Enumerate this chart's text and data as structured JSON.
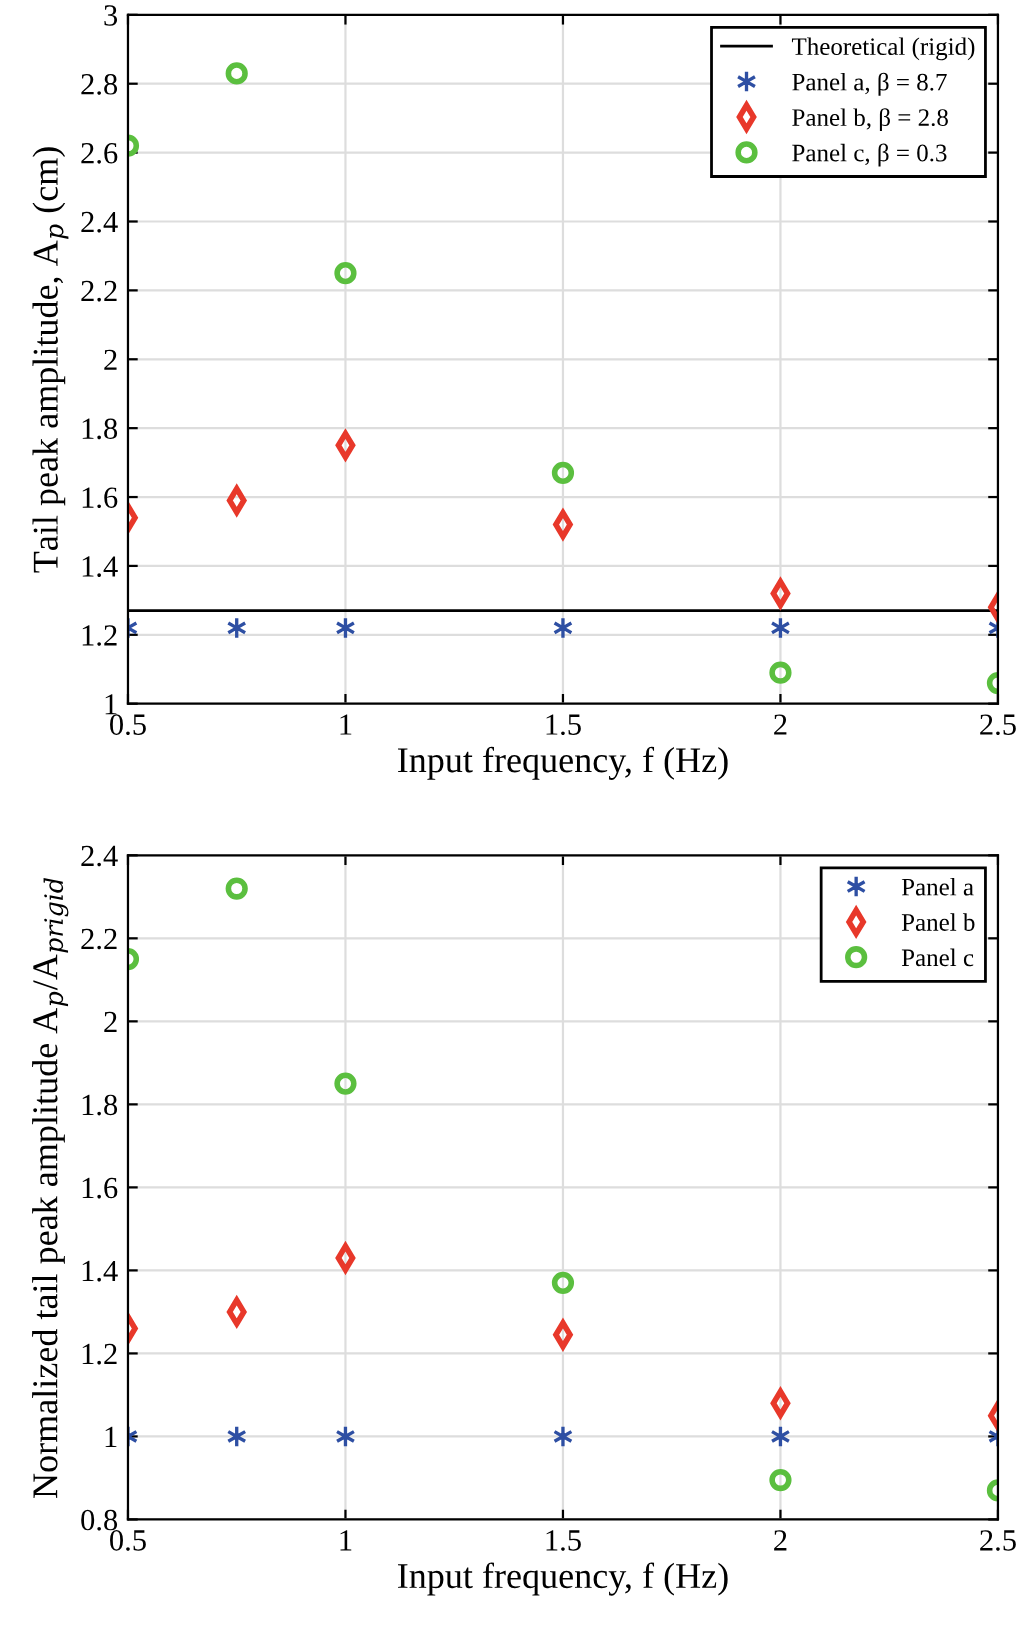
{
  "chart_data": [
    {
      "type": "scatter",
      "xlabel": "Input frequency, f (Hz)",
      "ylabel": "Tail peak amplitude, A$_{p}$ (cm)",
      "x": [
        0.5,
        0.75,
        1,
        1.5,
        2,
        2.5
      ],
      "series": [
        {
          "name": "Panel a, β = 8.7",
          "color": "#2e4fa3",
          "marker": "cross",
          "values": [
            1.22,
            1.22,
            1.22,
            1.22,
            1.22,
            1.22
          ]
        },
        {
          "name": "Panel b, β = 2.8",
          "color": "#e8382a",
          "marker": "diamond",
          "values": [
            1.54,
            1.59,
            1.75,
            1.52,
            1.32,
            1.28
          ]
        },
        {
          "name": "Panel c, β = 0.3",
          "color": "#5bbf3f",
          "marker": "circle",
          "values": [
            2.62,
            2.83,
            2.25,
            1.67,
            1.09,
            1.06
          ]
        }
      ],
      "ref_lines": [
        {
          "axis": "y",
          "value": 1.27,
          "label": "Theoretical (rigid)",
          "color": "#000000",
          "line_style": "solid"
        }
      ],
      "xlim": [
        0.5,
        2.5
      ],
      "xticks": [
        0.5,
        1,
        1.5,
        2,
        2.5
      ],
      "ylim": [
        1,
        3
      ],
      "yticks": [
        1,
        1.2,
        1.4,
        1.6,
        1.8,
        2,
        2.2,
        2.4,
        2.6,
        2.8,
        3
      ],
      "grid": true,
      "legend": "top right"
    },
    {
      "type": "scatter",
      "xlabel": "Input frequency, f (Hz)",
      "ylabel": "Normalized tail peak amplitude A$_{p}$/A$_{prigid}$",
      "x": [
        0.5,
        0.75,
        1,
        1.5,
        2,
        2.5
      ],
      "series": [
        {
          "name": "Panel a",
          "color": "#2e4fa3",
          "marker": "cross",
          "values": [
            1,
            1,
            1,
            1,
            1,
            1
          ]
        },
        {
          "name": "Panel b",
          "color": "#e8382a",
          "marker": "diamond",
          "values": [
            1.26,
            1.3,
            1.43,
            1.245,
            1.08,
            1.05
          ]
        },
        {
          "name": "Panel c",
          "color": "#5bbf3f",
          "marker": "circle",
          "values": [
            2.15,
            2.32,
            1.85,
            1.37,
            0.895,
            0.87
          ]
        }
      ],
      "xlim": [
        0.5,
        2.5
      ],
      "xticks": [
        0.5,
        1,
        1.5,
        2,
        2.5
      ],
      "ylim": [
        0.8,
        2.4
      ],
      "yticks": [
        0.8,
        1,
        1.2,
        1.4,
        1.6,
        1.8,
        2,
        2.2,
        2.4
      ],
      "grid": true,
      "legend": "top right"
    }
  ]
}
